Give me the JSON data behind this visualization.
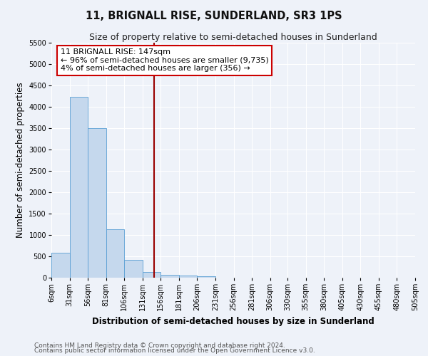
{
  "title": "11, BRIGNALL RISE, SUNDERLAND, SR3 1PS",
  "subtitle": "Size of property relative to semi-detached houses in Sunderland",
  "xlabel": "Distribution of semi-detached houses by size in Sunderland",
  "ylabel": "Number of semi-detached properties",
  "bar_color": "#c5d8ed",
  "bar_edge_color": "#5a9fd4",
  "bin_labels": [
    "6sqm",
    "31sqm",
    "56sqm",
    "81sqm",
    "106sqm",
    "131sqm",
    "156sqm",
    "181sqm",
    "206sqm",
    "231sqm",
    "256sqm",
    "281sqm",
    "306sqm",
    "330sqm",
    "355sqm",
    "380sqm",
    "405sqm",
    "430sqm",
    "455sqm",
    "480sqm",
    "505sqm"
  ],
  "bin_edges": [
    6,
    31,
    56,
    81,
    106,
    131,
    156,
    181,
    206,
    231,
    256,
    281,
    306,
    330,
    355,
    380,
    405,
    430,
    455,
    480,
    505
  ],
  "bar_heights": [
    580,
    4230,
    3500,
    1130,
    420,
    140,
    70,
    50,
    30,
    0,
    0,
    0,
    0,
    0,
    0,
    0,
    0,
    0,
    0,
    0
  ],
  "ylim": [
    0,
    5500
  ],
  "yticks": [
    0,
    500,
    1000,
    1500,
    2000,
    2500,
    3000,
    3500,
    4000,
    4500,
    5000,
    5500
  ],
  "property_size": 147,
  "vline_color": "#990000",
  "annotation_box_color": "#ffffff",
  "annotation_box_edge": "#cc0000",
  "annotation_title": "11 BRIGNALL RISE: 147sqm",
  "annotation_line1": "← 96% of semi-detached houses are smaller (9,735)",
  "annotation_line2": "4% of semi-detached houses are larger (356) →",
  "footer_line1": "Contains HM Land Registry data © Crown copyright and database right 2024.",
  "footer_line2": "Contains public sector information licensed under the Open Government Licence v3.0.",
  "background_color": "#eef2f9",
  "grid_color": "#ffffff",
  "title_fontsize": 10.5,
  "subtitle_fontsize": 9,
  "axis_label_fontsize": 8.5,
  "tick_fontsize": 7,
  "annotation_fontsize": 8,
  "footer_fontsize": 6.5
}
